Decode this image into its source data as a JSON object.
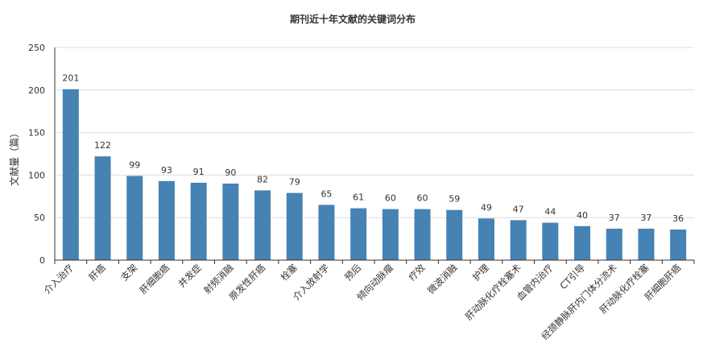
{
  "chart_data": {
    "type": "bar",
    "title": "期刊近十年文献的关键词分布",
    "ylabel": "文献量（篇）",
    "xlabel": "",
    "ylim": [
      0,
      250
    ],
    "yticks": [
      "0",
      "50",
      "100",
      "150",
      "200",
      "250"
    ],
    "grid": true,
    "bar_color": "#4682b4",
    "categories": [
      "介入治疗",
      "肝癌",
      "支架",
      "肝细胞癌",
      "并发症",
      "射频消融",
      "原发性肝癌",
      "栓塞",
      "介入放射学",
      "预后",
      "倾向动脉瘤",
      "疗效",
      "微波消融",
      "护理",
      "肝动脉化疗栓塞术",
      "血管内治疗",
      "CT引导",
      "经颈静脉肝内门体分流术",
      "肝动脉化疗栓塞",
      "肝细胞肝癌"
    ],
    "values": [
      201,
      122,
      99,
      93,
      91,
      90,
      82,
      79,
      65,
      61,
      60,
      60,
      59,
      49,
      47,
      44,
      40,
      37,
      37,
      36
    ]
  }
}
